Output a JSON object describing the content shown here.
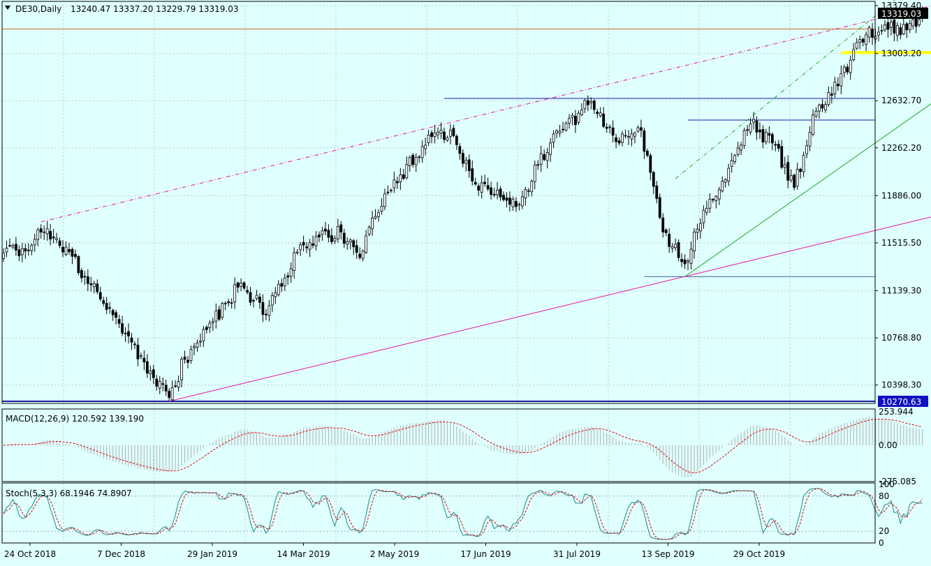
{
  "colors": {
    "background": "#e0ffff",
    "grid": "#b8cccc",
    "candle": "#000000",
    "channel_line": "#e8109a",
    "support_green": "#22aa22",
    "level_blue": "#1a1aa0",
    "horizontal_orange": "#c86414",
    "highlight_yellow": "#ffff00",
    "macd_hist": "#b0b0b0",
    "macd_signal": "#e00000",
    "stoch_main": "#1a8a8a",
    "stoch_signal": "#e00000",
    "price_badge": "#000000",
    "low_badge": "#1010c0"
  },
  "header": {
    "symbol_label": "DE30,Daily",
    "ohlc": "13240.47 13337.20 13229.79 13319.03"
  },
  "chart_data": [
    {
      "type": "candlestick",
      "symbol": "DE30",
      "timeframe": "Daily",
      "ylim": [
        10270.63,
        13379.4
      ],
      "y_ticks": [
        "13379.40",
        "13003.20",
        "12632.70",
        "12262.20",
        "11886.00",
        "11515.50",
        "11139.30",
        "10768.80",
        "10398.30"
      ],
      "x_ticks": [
        "24 Oct 2018",
        "7 Dec 2018",
        "29 Jan 2019",
        "14 Mar 2019",
        "2 May 2019",
        "17 Jun 2019",
        "31 Jul 2019",
        "13 Sep 2019",
        "29 Oct 2019"
      ],
      "last_price": "13319.03",
      "low_marker": "10270.63",
      "anchors": [
        {
          "date": "2018-10-24",
          "close": 11450
        },
        {
          "date": "2018-10-31",
          "close": 11600
        },
        {
          "date": "2018-11-07",
          "close": 11550
        },
        {
          "date": "2018-11-20",
          "close": 11250
        },
        {
          "date": "2018-12-07",
          "close": 10800
        },
        {
          "date": "2018-12-27",
          "close": 10300
        },
        {
          "date": "2019-01-03",
          "close": 10600
        },
        {
          "date": "2019-01-29",
          "close": 11200
        },
        {
          "date": "2019-02-08",
          "close": 10950
        },
        {
          "date": "2019-02-25",
          "close": 11500
        },
        {
          "date": "2019-03-14",
          "close": 11600
        },
        {
          "date": "2019-03-22",
          "close": 11400
        },
        {
          "date": "2019-04-03",
          "close": 11900
        },
        {
          "date": "2019-04-24",
          "close": 12350
        },
        {
          "date": "2019-05-02",
          "close": 12400
        },
        {
          "date": "2019-05-13",
          "close": 12000
        },
        {
          "date": "2019-05-31",
          "close": 11800
        },
        {
          "date": "2019-06-17",
          "close": 12300
        },
        {
          "date": "2019-07-03",
          "close": 12600
        },
        {
          "date": "2019-07-17",
          "close": 12300
        },
        {
          "date": "2019-07-26",
          "close": 12400
        },
        {
          "date": "2019-08-06",
          "close": 11600
        },
        {
          "date": "2019-08-15",
          "close": 11350
        },
        {
          "date": "2019-08-20",
          "close": 11600
        },
        {
          "date": "2019-09-02",
          "close": 12000
        },
        {
          "date": "2019-09-13",
          "close": 12450
        },
        {
          "date": "2019-09-24",
          "close": 12300
        },
        {
          "date": "2019-10-03",
          "close": 11950
        },
        {
          "date": "2019-10-14",
          "close": 12550
        },
        {
          "date": "2019-10-29",
          "close": 12950
        },
        {
          "date": "2019-11-05",
          "close": 13150
        },
        {
          "date": "2019-11-15",
          "close": 13250
        },
        {
          "date": "2019-11-20",
          "close": 13150
        },
        {
          "date": "2019-11-29",
          "close": 13319
        }
      ],
      "trendlines": [
        {
          "name": "channel-upper",
          "style": "dash-dot",
          "from": {
            "date": "2018-10-31",
            "price": 11680
          },
          "to": {
            "date": "2019-12-15",
            "price": 13420
          }
        },
        {
          "name": "channel-lower",
          "style": "solid",
          "from": {
            "date": "2018-12-27",
            "price": 10270.63
          },
          "to": {
            "date": "2020-01-25",
            "price": 11940
          }
        },
        {
          "name": "green-support",
          "style": "solid",
          "from": {
            "date": "2019-08-15",
            "price": 11250
          },
          "to": {
            "date": "2020-01-25",
            "price": 13250
          }
        },
        {
          "name": "green-upper",
          "style": "dash-dot",
          "from": {
            "date": "2019-08-12",
            "price": 12020
          },
          "to": {
            "date": "2019-11-25",
            "price": 13520
          }
        }
      ],
      "horizontal_lines": [
        {
          "name": "resistance-12650",
          "price": 12650,
          "from": "2019-04-30",
          "to": "end"
        },
        {
          "name": "resistance-12480",
          "price": 12480,
          "from": "2019-08-17",
          "to": "end"
        },
        {
          "name": "support-11250",
          "price": 11250,
          "from": "2019-07-29",
          "to": "end"
        },
        {
          "name": "low-10270",
          "price": 10270.63,
          "from": "start",
          "to": "end"
        },
        {
          "name": "orange-13195",
          "price": 13195,
          "from": "start",
          "to": "end"
        }
      ],
      "highlight_zone": {
        "price": 13010,
        "from": "2019-10-24",
        "to": "2019-12-04"
      }
    },
    {
      "type": "macd",
      "label": "MACD(12,26,9) 120.592 139.190",
      "params": "12,26,9",
      "main": 120.592,
      "signal": 139.19,
      "ylim": [
        -275.085,
        253.944
      ],
      "y_ticks": [
        "253.944",
        "0.00",
        "-275.085"
      ]
    },
    {
      "type": "stochastic",
      "label": "Stoch(5,3,3) 68.1946 74.8907",
      "params": "5,3,3",
      "main": 68.1946,
      "signal": 74.8907,
      "ylim": [
        0,
        100
      ],
      "y_ticks": [
        "100",
        "80",
        "20",
        "0"
      ]
    }
  ]
}
